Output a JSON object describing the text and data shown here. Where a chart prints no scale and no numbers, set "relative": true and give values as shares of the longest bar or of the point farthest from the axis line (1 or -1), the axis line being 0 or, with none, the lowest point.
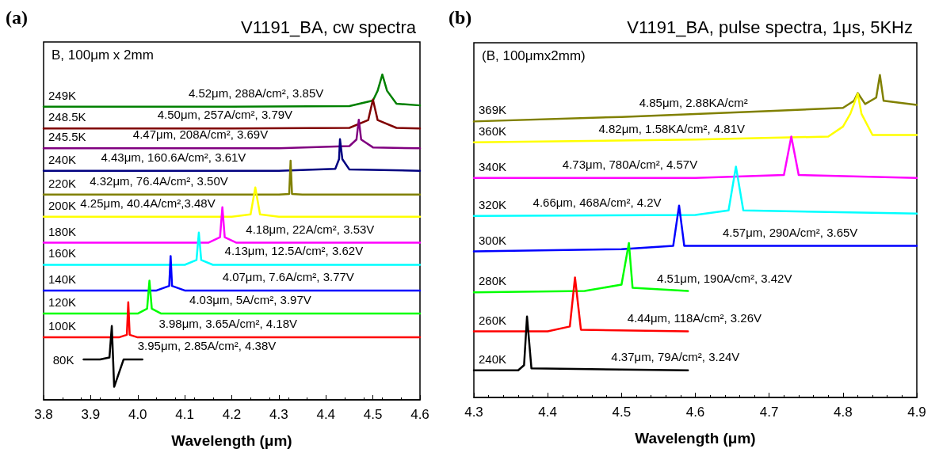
{
  "chart_data": [
    {
      "type": "line",
      "title": "V1191_BA, cw spectra",
      "xlabel": "Wavelength (μm)",
      "relative": true,
      "tick_labels": "x",
      "xlim": [
        3.8,
        4.6
      ],
      "xticks": [
        3.8,
        3.9,
        {
          "value": 4,
          "label": "4.0"
        },
        4.1,
        4.2,
        4.3,
        4.4,
        4.5,
        4.6
      ],
      "annotations": [
        "(a)",
        "B, 100μm x 2mm",
        {
          "text": "4.52μm, 288A/cm², 3.85V",
          "x": 4.108,
          "y": 0.901
        },
        {
          "text": "4.50μm, 257A/cm², 3.79V",
          "x": 4.042,
          "y": 0.834
        },
        {
          "text": "4.47μm, 208A/cm², 3.69V",
          "x": 3.99,
          "y": 0.773
        },
        {
          "text": "4.43μm, 160.6A/cm², 3.61V",
          "x": 3.922,
          "y": 0.704
        },
        {
          "text": "4.32μm, 76.4A/cm², 3.50V",
          "x": 3.898,
          "y": 0.631
        },
        {
          "text": "4.25μm, 40.4A/cm²,3.48V",
          "x": 3.878,
          "y": 0.563
        },
        {
          "text": "4.18μm, 22A/cm², 3.53V",
          "x": 4.23,
          "y": 0.483
        },
        {
          "text": "4.13μm, 12.5A/cm², 3.62V",
          "x": 4.185,
          "y": 0.415
        },
        {
          "text": "4.07μm, 7.6A/cm², 3.77V",
          "x": 4.18,
          "y": 0.336
        },
        {
          "text": "4.03μm, 5A/cm², 3.97V",
          "x": 4.11,
          "y": 0.265
        },
        {
          "text": "3.98μm, 3.65A/cm², 4.18V",
          "x": 4.045,
          "y": 0.192
        },
        {
          "text": "3.95μm, 2.85A/cm², 4.38V",
          "x": 4.0,
          "y": 0.124
        }
      ],
      "series": [
        {
          "name": "249K",
          "color": "#008000",
          "x": [
            3.8,
            4.2,
            4.45,
            4.5,
            4.51,
            4.52,
            4.53,
            4.55,
            4.6
          ],
          "values": [
            0.901,
            0.901,
            0.903,
            0.92,
            0.95,
            1.0,
            0.95,
            0.91,
            0.905
          ]
        },
        {
          "name": "248.5K",
          "color": "#800000",
          "x": [
            3.8,
            4.2,
            4.45,
            4.49,
            4.5,
            4.51,
            4.55,
            4.6
          ],
          "values": [
            0.834,
            0.834,
            0.836,
            0.86,
            0.923,
            0.86,
            0.836,
            0.834
          ]
        },
        {
          "name": "245.5K",
          "color": "#800080",
          "x": [
            3.8,
            4.3,
            4.45,
            4.465,
            4.47,
            4.475,
            4.5,
            4.6
          ],
          "values": [
            0.773,
            0.773,
            0.78,
            0.8,
            0.861,
            0.8,
            0.776,
            0.773
          ]
        },
        {
          "name": "240K",
          "color": "#000080",
          "x": [
            3.8,
            4.3,
            4.42,
            4.428,
            4.43,
            4.435,
            4.45,
            4.6
          ],
          "values": [
            0.704,
            0.704,
            0.71,
            0.74,
            0.801,
            0.74,
            0.708,
            0.704
          ]
        },
        {
          "name": "220K",
          "color": "#808000",
          "x": [
            3.8,
            4.3,
            4.322,
            4.325,
            4.328,
            4.35,
            4.6
          ],
          "values": [
            0.631,
            0.631,
            0.633,
            0.735,
            0.633,
            0.631,
            0.631
          ]
        },
        {
          "name": "200K",
          "color": "#ffff00",
          "x": [
            3.8,
            4.2,
            4.24,
            4.25,
            4.26,
            4.3,
            4.6
          ],
          "values": [
            0.563,
            0.563,
            0.57,
            0.653,
            0.57,
            0.563,
            0.563
          ]
        },
        {
          "name": "180K",
          "color": "#ff00ff",
          "x": [
            3.8,
            4.15,
            4.175,
            4.18,
            4.185,
            4.21,
            4.6
          ],
          "values": [
            0.483,
            0.483,
            0.5,
            0.592,
            0.5,
            0.483,
            0.483
          ]
        },
        {
          "name": "160K",
          "color": "#00ffff",
          "x": [
            3.8,
            4.1,
            4.125,
            4.13,
            4.135,
            4.16,
            4.6
          ],
          "values": [
            0.415,
            0.415,
            0.43,
            0.514,
            0.43,
            0.415,
            0.415
          ]
        },
        {
          "name": "140K",
          "color": "#0000ff",
          "x": [
            3.8,
            4.04,
            4.067,
            4.07,
            4.073,
            4.1,
            4.6
          ],
          "values": [
            0.336,
            0.336,
            0.35,
            0.442,
            0.35,
            0.336,
            0.336
          ]
        },
        {
          "name": "120K",
          "color": "#00ff00",
          "x": [
            3.8,
            4.0,
            4.02,
            4.025,
            4.03,
            4.05,
            4.6
          ],
          "values": [
            0.265,
            0.265,
            0.28,
            0.366,
            0.28,
            0.265,
            0.265
          ]
        },
        {
          "name": "100K",
          "color": "#ff0000",
          "x": [
            3.8,
            3.96,
            3.977,
            3.98,
            3.983,
            4.0,
            4.6
          ],
          "values": [
            0.192,
            0.192,
            0.2,
            0.3,
            0.2,
            0.192,
            0.192
          ]
        },
        {
          "name": "80K",
          "color": "#000000",
          "x": [
            3.885,
            3.92,
            3.94,
            3.945,
            3.95,
            3.97,
            4.01
          ],
          "values": [
            0.124,
            0.124,
            0.13,
            0.227,
            0.04,
            0.124,
            0.124
          ]
        }
      ]
    },
    {
      "type": "line",
      "title": "V1191_BA, pulse spectra, 1μs, 5KHz",
      "xlabel": "Wavelength (μm)",
      "relative": true,
      "tick_labels": "x",
      "xlim": [
        4.3,
        4.9
      ],
      "xticks": [
        4.3,
        4.4,
        4.5,
        4.6,
        4.7,
        4.8,
        4.9
      ],
      "annotations": [
        "(b)",
        "(B, 100μmx2mm)",
        {
          "text": "4.85μm, 2.88KA/cm²",
          "x": 4.524,
          "y": 0.872
        },
        {
          "text": "4.82μm, 1.58KA/cm², 4.81V",
          "x": 4.469,
          "y": 0.791
        },
        {
          "text": "4.73μm, 780A/cm², 4.57V",
          "x": 4.42,
          "y": 0.681
        },
        {
          "text": "4.66μm, 468A/cm², 4.2V",
          "x": 4.38,
          "y": 0.563
        },
        {
          "text": "4.57μm, 290A/cm², 3.65V",
          "x": 4.637,
          "y": 0.47
        },
        {
          "text": "4.51μm, 190A/cm², 3.42V",
          "x": 4.548,
          "y": 0.326
        },
        {
          "text": "4.44μm, 118A/cm², 3.26V",
          "x": 4.508,
          "y": 0.205
        },
        {
          "text": "4.37μm, 79A/cm², 3.24V",
          "x": 4.486,
          "y": 0.084
        }
      ],
      "series": [
        {
          "name": "369K",
          "color": "#808000",
          "x": [
            4.3,
            4.5,
            4.7,
            4.8,
            4.815,
            4.82,
            4.83,
            4.845,
            4.85,
            4.855,
            4.9
          ],
          "values": [
            0.856,
            0.87,
            0.888,
            0.898,
            0.92,
            0.944,
            0.91,
            0.93,
            1.0,
            0.92,
            0.907
          ]
        },
        {
          "name": "360K",
          "color": "#ffff00",
          "x": [
            4.3,
            4.6,
            4.78,
            4.8,
            4.81,
            4.82,
            4.825,
            4.84,
            4.9
          ],
          "values": [
            0.791,
            0.8,
            0.809,
            0.84,
            0.88,
            0.942,
            0.88,
            0.814,
            0.814
          ]
        },
        {
          "name": "340K",
          "color": "#ff00ff",
          "x": [
            4.3,
            4.6,
            4.72,
            4.73,
            4.74,
            4.9
          ],
          "values": [
            0.681,
            0.681,
            0.69,
            0.809,
            0.69,
            0.681
          ]
        },
        {
          "name": "320K",
          "color": "#00ffff",
          "x": [
            4.3,
            4.6,
            4.645,
            4.655,
            4.665,
            4.9
          ],
          "values": [
            0.563,
            0.566,
            0.58,
            0.716,
            0.58,
            0.57
          ]
        },
        {
          "name": "300K",
          "color": "#0000ff",
          "x": [
            4.3,
            4.5,
            4.57,
            4.578,
            4.585,
            4.9
          ],
          "values": [
            0.453,
            0.46,
            0.47,
            0.595,
            0.47,
            0.47
          ]
        },
        {
          "name": "280K",
          "color": "#00ff00",
          "x": [
            4.3,
            4.45,
            4.5,
            4.51,
            4.515,
            4.59
          ],
          "values": [
            0.326,
            0.33,
            0.35,
            0.479,
            0.34,
            0.33
          ]
        },
        {
          "name": "260K",
          "color": "#ff0000",
          "x": [
            4.3,
            4.4,
            4.43,
            4.437,
            4.445,
            4.59
          ],
          "values": [
            0.205,
            0.205,
            0.22,
            0.372,
            0.21,
            0.205
          ]
        },
        {
          "name": "240K",
          "color": "#000000",
          "x": [
            4.3,
            4.36,
            4.368,
            4.372,
            4.378,
            4.59
          ],
          "values": [
            0.084,
            0.084,
            0.1,
            0.251,
            0.09,
            0.084
          ]
        }
      ]
    }
  ]
}
